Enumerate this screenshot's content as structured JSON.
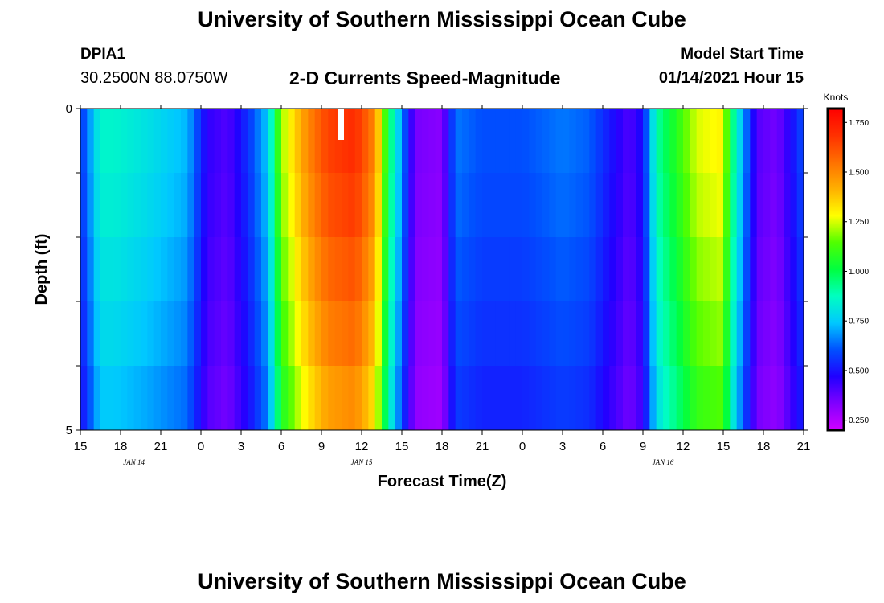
{
  "header": {
    "title_top": "University of Southern Mississippi Ocean Cube",
    "title_bottom": "University of Southern Mississippi Ocean Cube",
    "station_id": "DPIA1",
    "coordinates": "30.2500N 88.0750W",
    "plot_title": "2-D Currents Speed-Magnitude",
    "model_label": "Model Start Time",
    "model_time": "01/14/2021 Hour 15"
  },
  "chart_data": {
    "type": "heatmap",
    "title": "2-D Currents Speed-Magnitude",
    "xlabel": "Forecast Time(Z)",
    "ylabel": "Depth (ft)",
    "x_hours": [
      0,
      54
    ],
    "x_tick_labels": [
      "15",
      "18",
      "21",
      "0",
      "3",
      "6",
      "9",
      "12",
      "15",
      "18",
      "21",
      "0",
      "3",
      "6",
      "9",
      "12",
      "15",
      "18",
      "21"
    ],
    "date_labels": [
      {
        "text": "JAN 14",
        "hour": 4
      },
      {
        "text": "JAN 15",
        "hour": 21
      },
      {
        "text": "JAN 16",
        "hour": 43.5
      }
    ],
    "y_range": [
      0,
      5
    ],
    "y_tick_labels": [
      "0",
      "5"
    ],
    "colorbar": {
      "label": "Knots",
      "range": [
        0.2,
        1.82
      ],
      "ticks": [
        "1.750",
        "1.500",
        "1.250",
        "1.000",
        "0.750",
        "0.500",
        "0.250"
      ],
      "tick_values": [
        1.75,
        1.5,
        1.25,
        1.0,
        0.75,
        0.5,
        0.25
      ],
      "colors": [
        "#d000ff",
        "#8000ff",
        "#2000ff",
        "#0050ff",
        "#00c8ff",
        "#00ffc0",
        "#00ff40",
        "#50ff00",
        "#ffff00",
        "#ffb000",
        "#ff7000",
        "#ff3000",
        "#ff0000"
      ]
    },
    "profile_key_hours": [
      0,
      1.5,
      2.5,
      5,
      8,
      9.5,
      11,
      12.5,
      14,
      15,
      17,
      18.5,
      20.5,
      22,
      23,
      25,
      27,
      28,
      30,
      33,
      36,
      38,
      41,
      42,
      43,
      46,
      48,
      48.5,
      49.5,
      50.5,
      52,
      54
    ],
    "profile_key_values": [
      0.55,
      0.85,
      0.85,
      0.8,
      0.72,
      0.45,
      0.4,
      0.55,
      0.75,
      1.2,
      1.5,
      1.65,
      1.7,
      1.5,
      1.0,
      0.35,
      0.32,
      0.65,
      0.6,
      0.6,
      0.65,
      0.62,
      0.4,
      0.5,
      0.9,
      1.25,
      1.3,
      1.0,
      0.7,
      0.4,
      0.35,
      0.6
    ],
    "depth_row_factors": [
      1.0,
      0.98,
      0.95,
      0.92,
      0.88
    ]
  }
}
